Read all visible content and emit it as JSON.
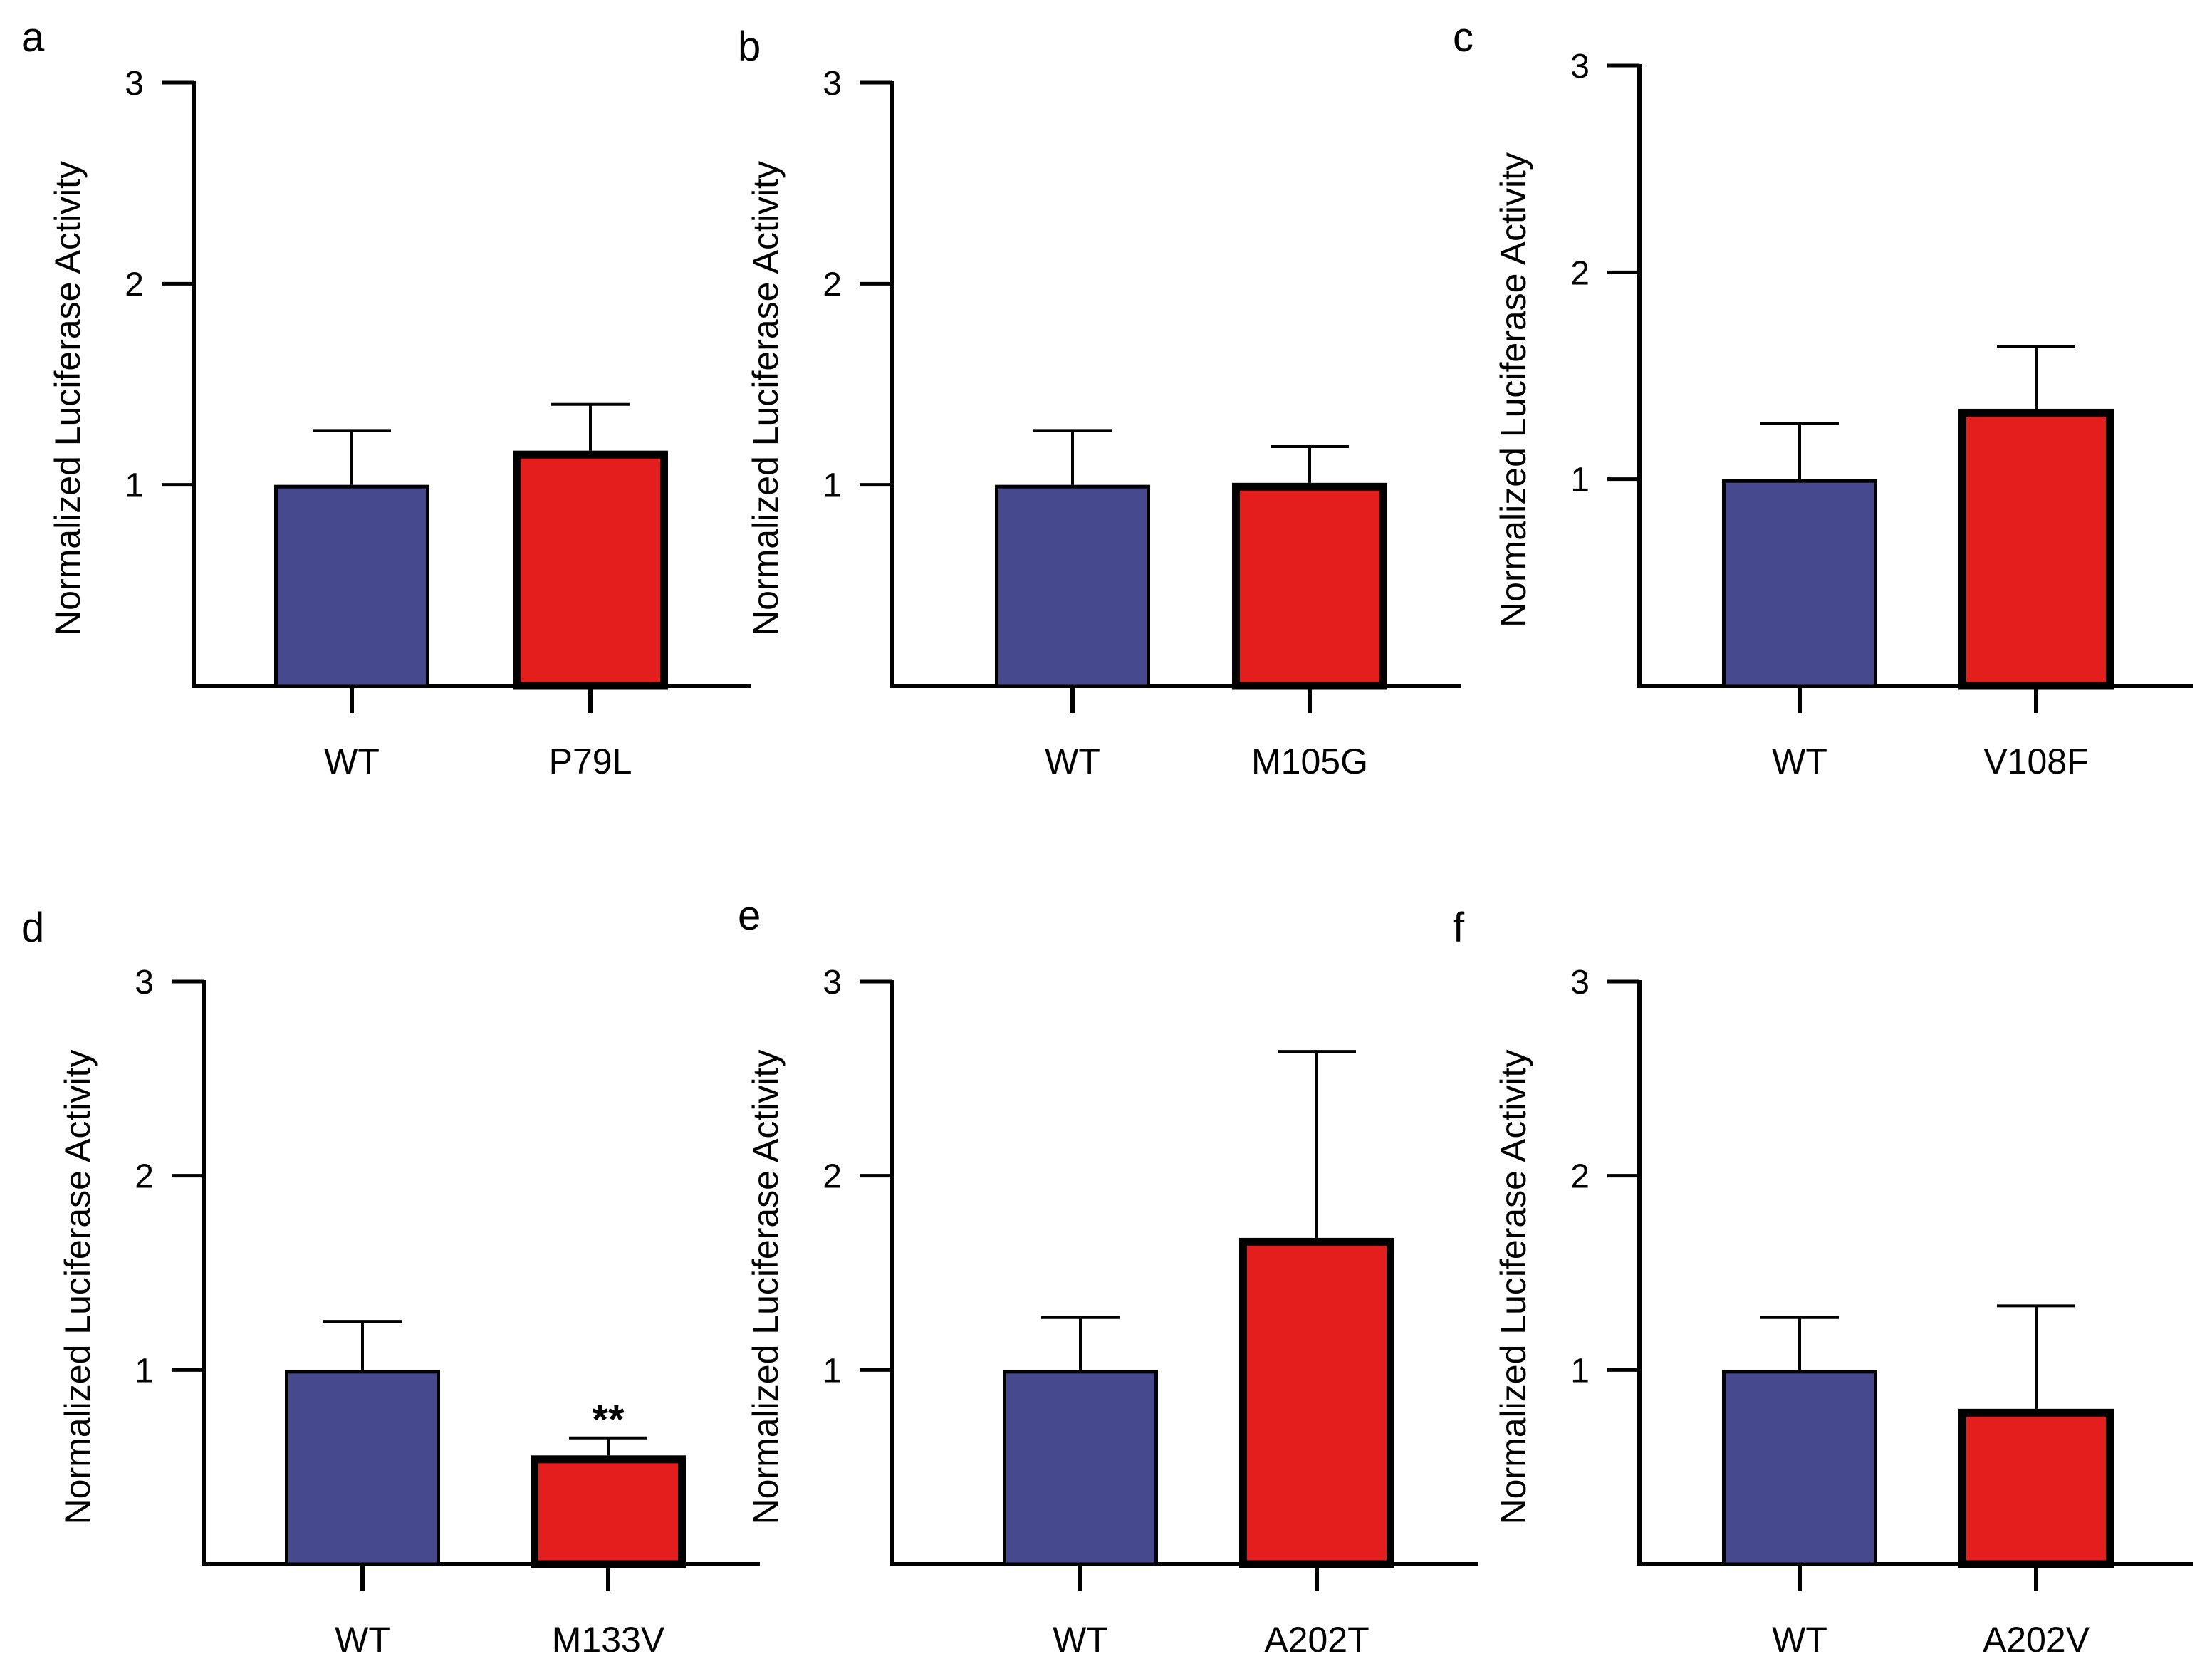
{
  "colors": {
    "wt": "#46498e",
    "mutant": "#e41d1d",
    "axis": "#000000"
  },
  "chart_data": [
    {
      "panel": "a",
      "type": "bar",
      "ylabel": "Normalized Luciferase Activity",
      "ylim": [
        0,
        3
      ],
      "yticks": [
        "1",
        "2",
        "3"
      ],
      "categories": [
        "WT",
        "P79L"
      ],
      "values": [
        1.0,
        1.17
      ],
      "errors": [
        0.27,
        0.23
      ],
      "annotations": [
        "",
        ""
      ]
    },
    {
      "panel": "b",
      "type": "bar",
      "ylabel": "Normalized Luciferase Activity",
      "ylim": [
        0,
        3
      ],
      "yticks": [
        "1",
        "2",
        "3"
      ],
      "categories": [
        "WT",
        "M105G"
      ],
      "values": [
        1.0,
        1.01
      ],
      "errors": [
        0.27,
        0.18
      ],
      "annotations": [
        "",
        ""
      ]
    },
    {
      "panel": "c",
      "type": "bar",
      "ylabel": "Normalized Luciferase Activity",
      "ylim": [
        0,
        3
      ],
      "yticks": [
        "1",
        "2",
        "3"
      ],
      "categories": [
        "WT",
        "V108F"
      ],
      "values": [
        1.0,
        1.34
      ],
      "errors": [
        0.27,
        0.3
      ],
      "annotations": [
        "",
        ""
      ]
    },
    {
      "panel": "d",
      "type": "bar",
      "ylabel": "Normalized Luciferase Activity",
      "ylim": [
        0,
        3
      ],
      "yticks": [
        "1",
        "2",
        "3"
      ],
      "categories": [
        "WT",
        "M133V"
      ],
      "values": [
        1.0,
        0.56
      ],
      "errors": [
        0.25,
        0.09
      ],
      "annotations": [
        "",
        "**"
      ]
    },
    {
      "panel": "e",
      "type": "bar",
      "ylabel": "Normalized Luciferase Activity",
      "ylim": [
        0,
        3
      ],
      "yticks": [
        "1",
        "2",
        "3"
      ],
      "categories": [
        "WT",
        "A202T"
      ],
      "values": [
        1.0,
        1.68
      ],
      "errors": [
        0.27,
        0.96
      ],
      "annotations": [
        "",
        ""
      ]
    },
    {
      "panel": "f",
      "type": "bar",
      "ylabel": "Normalized Luciferase Activity",
      "ylim": [
        0,
        3
      ],
      "yticks": [
        "1",
        "2",
        "3"
      ],
      "categories": [
        "WT",
        "A202V"
      ],
      "values": [
        1.0,
        0.8
      ],
      "errors": [
        0.27,
        0.53
      ],
      "annotations": [
        "",
        ""
      ]
    }
  ]
}
